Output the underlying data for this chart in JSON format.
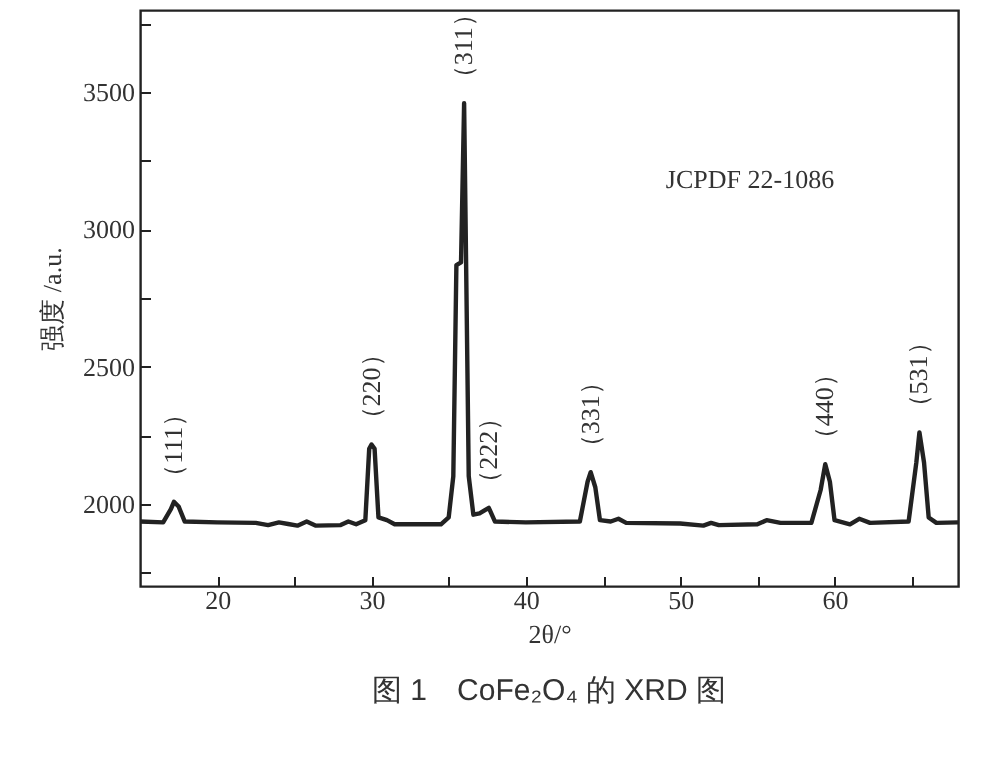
{
  "chart_data": {
    "type": "line",
    "title": "图 1　CoFe₂O₄ 的 XRD 图",
    "xlabel": "2θ/°",
    "ylabel": "强度 /a.u.",
    "x": [
      15.0,
      16.5,
      17.0,
      17.2,
      17.5,
      17.9,
      20,
      22.5,
      23.3,
      24,
      24.6,
      25.2,
      25.8,
      26.4,
      28,
      28.5,
      29,
      29.6,
      29.85,
      30.0,
      30.2,
      30.45,
      31,
      31.5,
      34.5,
      35.0,
      35.3,
      35.5,
      35.8,
      36.0,
      36.3,
      36.6,
      37.0,
      37.6,
      38.0,
      40,
      43.5,
      44.0,
      44.2,
      44.5,
      44.8,
      45.5,
      46,
      46.5,
      50,
      51.5,
      52,
      52.5,
      55,
      55.6,
      56.5,
      58.5,
      59.1,
      59.4,
      59.7,
      60.0,
      61,
      61.6,
      62.3,
      64.8,
      65.3,
      65.5,
      65.8,
      66.1,
      66.6,
      68
    ],
    "series": [
      {
        "color": "#222222",
        "values": [
          1935,
          1932,
          1980,
          2007,
          1990,
          1935,
          1932,
          1930,
          1922,
          1932,
          1926,
          1920,
          1935,
          1920,
          1922,
          1935,
          1925,
          1940,
          2200,
          2216,
          2200,
          1950,
          1940,
          1925,
          1925,
          1950,
          2100,
          2870,
          2880,
          3460,
          2100,
          1960,
          1965,
          1985,
          1935,
          1932,
          1935,
          2080,
          2115,
          2060,
          1940,
          1935,
          1945,
          1930,
          1928,
          1920,
          1930,
          1922,
          1925,
          1940,
          1930,
          1930,
          2050,
          2144,
          2080,
          1940,
          1925,
          1945,
          1930,
          1935,
          2150,
          2260,
          2150,
          1950,
          1930,
          1932
        ]
      }
    ],
    "annotations": [
      {
        "text": "（111）",
        "x": 17.2,
        "y": 2007
      },
      {
        "text": "（220）",
        "x": 30.0,
        "y": 2216
      },
      {
        "text": "（311）",
        "x": 36.0,
        "y": 3460
      },
      {
        "text": "（222）",
        "x": 37.6,
        "y": 1985
      },
      {
        "text": "（331）",
        "x": 44.2,
        "y": 2115
      },
      {
        "text": "（440）",
        "x": 59.4,
        "y": 2144
      },
      {
        "text": "（531）",
        "x": 65.5,
        "y": 2260
      },
      "JCPDF 22-1086"
    ],
    "xlim": [
      15,
      68
    ],
    "xticks": [
      20,
      {
        "value": 25,
        "label": null
      },
      30,
      {
        "value": 35,
        "label": null
      },
      40,
      {
        "value": 45,
        "label": null
      },
      50,
      {
        "value": 55,
        "label": null
      },
      60,
      {
        "value": 65,
        "label": null
      }
    ],
    "ylim": [
      1700,
      3800
    ],
    "yticks": [
      {
        "value": 1750,
        "label": null
      },
      2000,
      {
        "value": 2250,
        "label": null
      },
      2500,
      {
        "value": 2750,
        "label": null
      },
      3000,
      {
        "value": 3250,
        "label": null
      },
      3500,
      {
        "value": 3750,
        "label": null
      }
    ],
    "grid": false,
    "marker": "none",
    "line_style": "solid"
  }
}
